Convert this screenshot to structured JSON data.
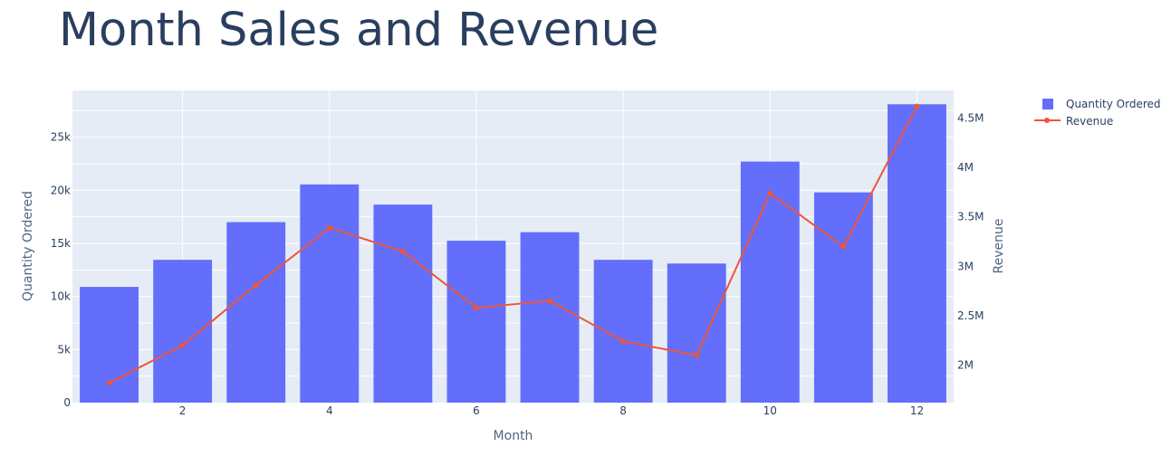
{
  "chart_data": {
    "type": "bar",
    "title": "Month Sales and Revenue",
    "xlabel": "Month",
    "ylabel": "Quantity Ordered",
    "y2label": "Revenue",
    "x": [
      1,
      2,
      3,
      4,
      5,
      6,
      7,
      8,
      9,
      10,
      11,
      12
    ],
    "xticks": [
      2,
      4,
      6,
      8,
      10,
      12
    ],
    "xlim": [
      0.5,
      12.5
    ],
    "ylim": [
      0,
      29400
    ],
    "yticks": [
      0,
      5000,
      10000,
      15000,
      20000,
      25000
    ],
    "ytick_labels": [
      "0",
      "5k",
      "10k",
      "15k",
      "20k",
      "25k"
    ],
    "y2lim": [
      1620000,
      4780000
    ],
    "y2ticks": [
      2000000,
      2500000,
      3000000,
      3500000,
      4000000,
      4500000
    ],
    "y2tick_labels": [
      "2M",
      "2.5M",
      "3M",
      "3.5M",
      "4M",
      "4.5M"
    ],
    "series": [
      {
        "name": "Quantity Ordered",
        "type": "bar",
        "axis": "y",
        "color": "#636efa",
        "values": [
          10900,
          13450,
          17000,
          20550,
          18650,
          15250,
          16050,
          13450,
          13100,
          22700,
          19800,
          28100
        ]
      },
      {
        "name": "Revenue",
        "type": "line",
        "axis": "y2",
        "color": "#ef553b",
        "values": [
          1820000,
          2200000,
          2810000,
          3390000,
          3150000,
          2580000,
          2650000,
          2240000,
          2100000,
          3740000,
          3200000,
          4620000
        ]
      }
    ],
    "grid": true,
    "legend": "top-right, outside plot"
  }
}
